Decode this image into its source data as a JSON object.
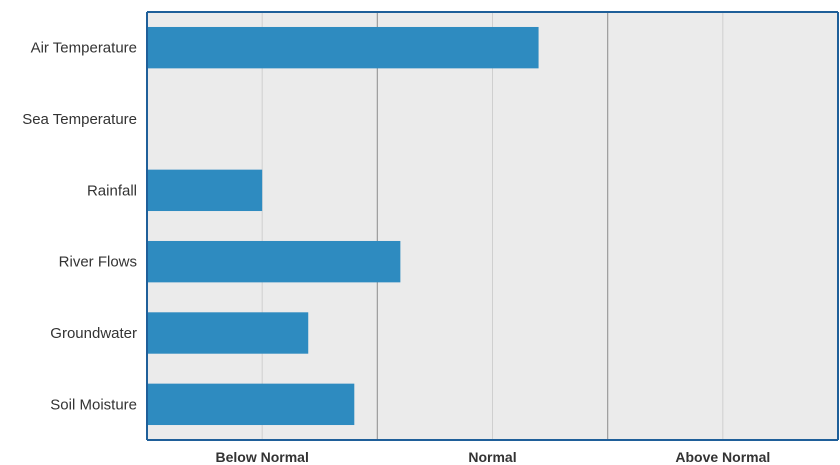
{
  "chart_data": {
    "type": "bar",
    "orientation": "horizontal",
    "categories": [
      "Air Temperature",
      "Sea Temperature",
      "Rainfall",
      "River Flows",
      "Groundwater",
      "Soil Moisture"
    ],
    "values": [
      4.4,
      null,
      2.0,
      3.2,
      2.4,
      2.8
    ],
    "xlim": [
      1,
      7
    ],
    "x_ticks": [
      {
        "value": 2,
        "label": "Below Normal"
      },
      {
        "value": 4,
        "label": "Normal"
      },
      {
        "value": 6,
        "label": "Above Normal"
      }
    ],
    "major_gridlines": [
      3,
      5
    ],
    "minor_gridlines": [
      2,
      4,
      6
    ],
    "grid": true,
    "legend": "none",
    "title": "",
    "xlabel": "",
    "ylabel": "",
    "colors": {
      "bar": "#2e8bc0",
      "plot_background": "#ebebeb",
      "axis": "#1f5f99",
      "major_grid": "#9a9a9a",
      "minor_grid": "#cfcfcf"
    }
  }
}
